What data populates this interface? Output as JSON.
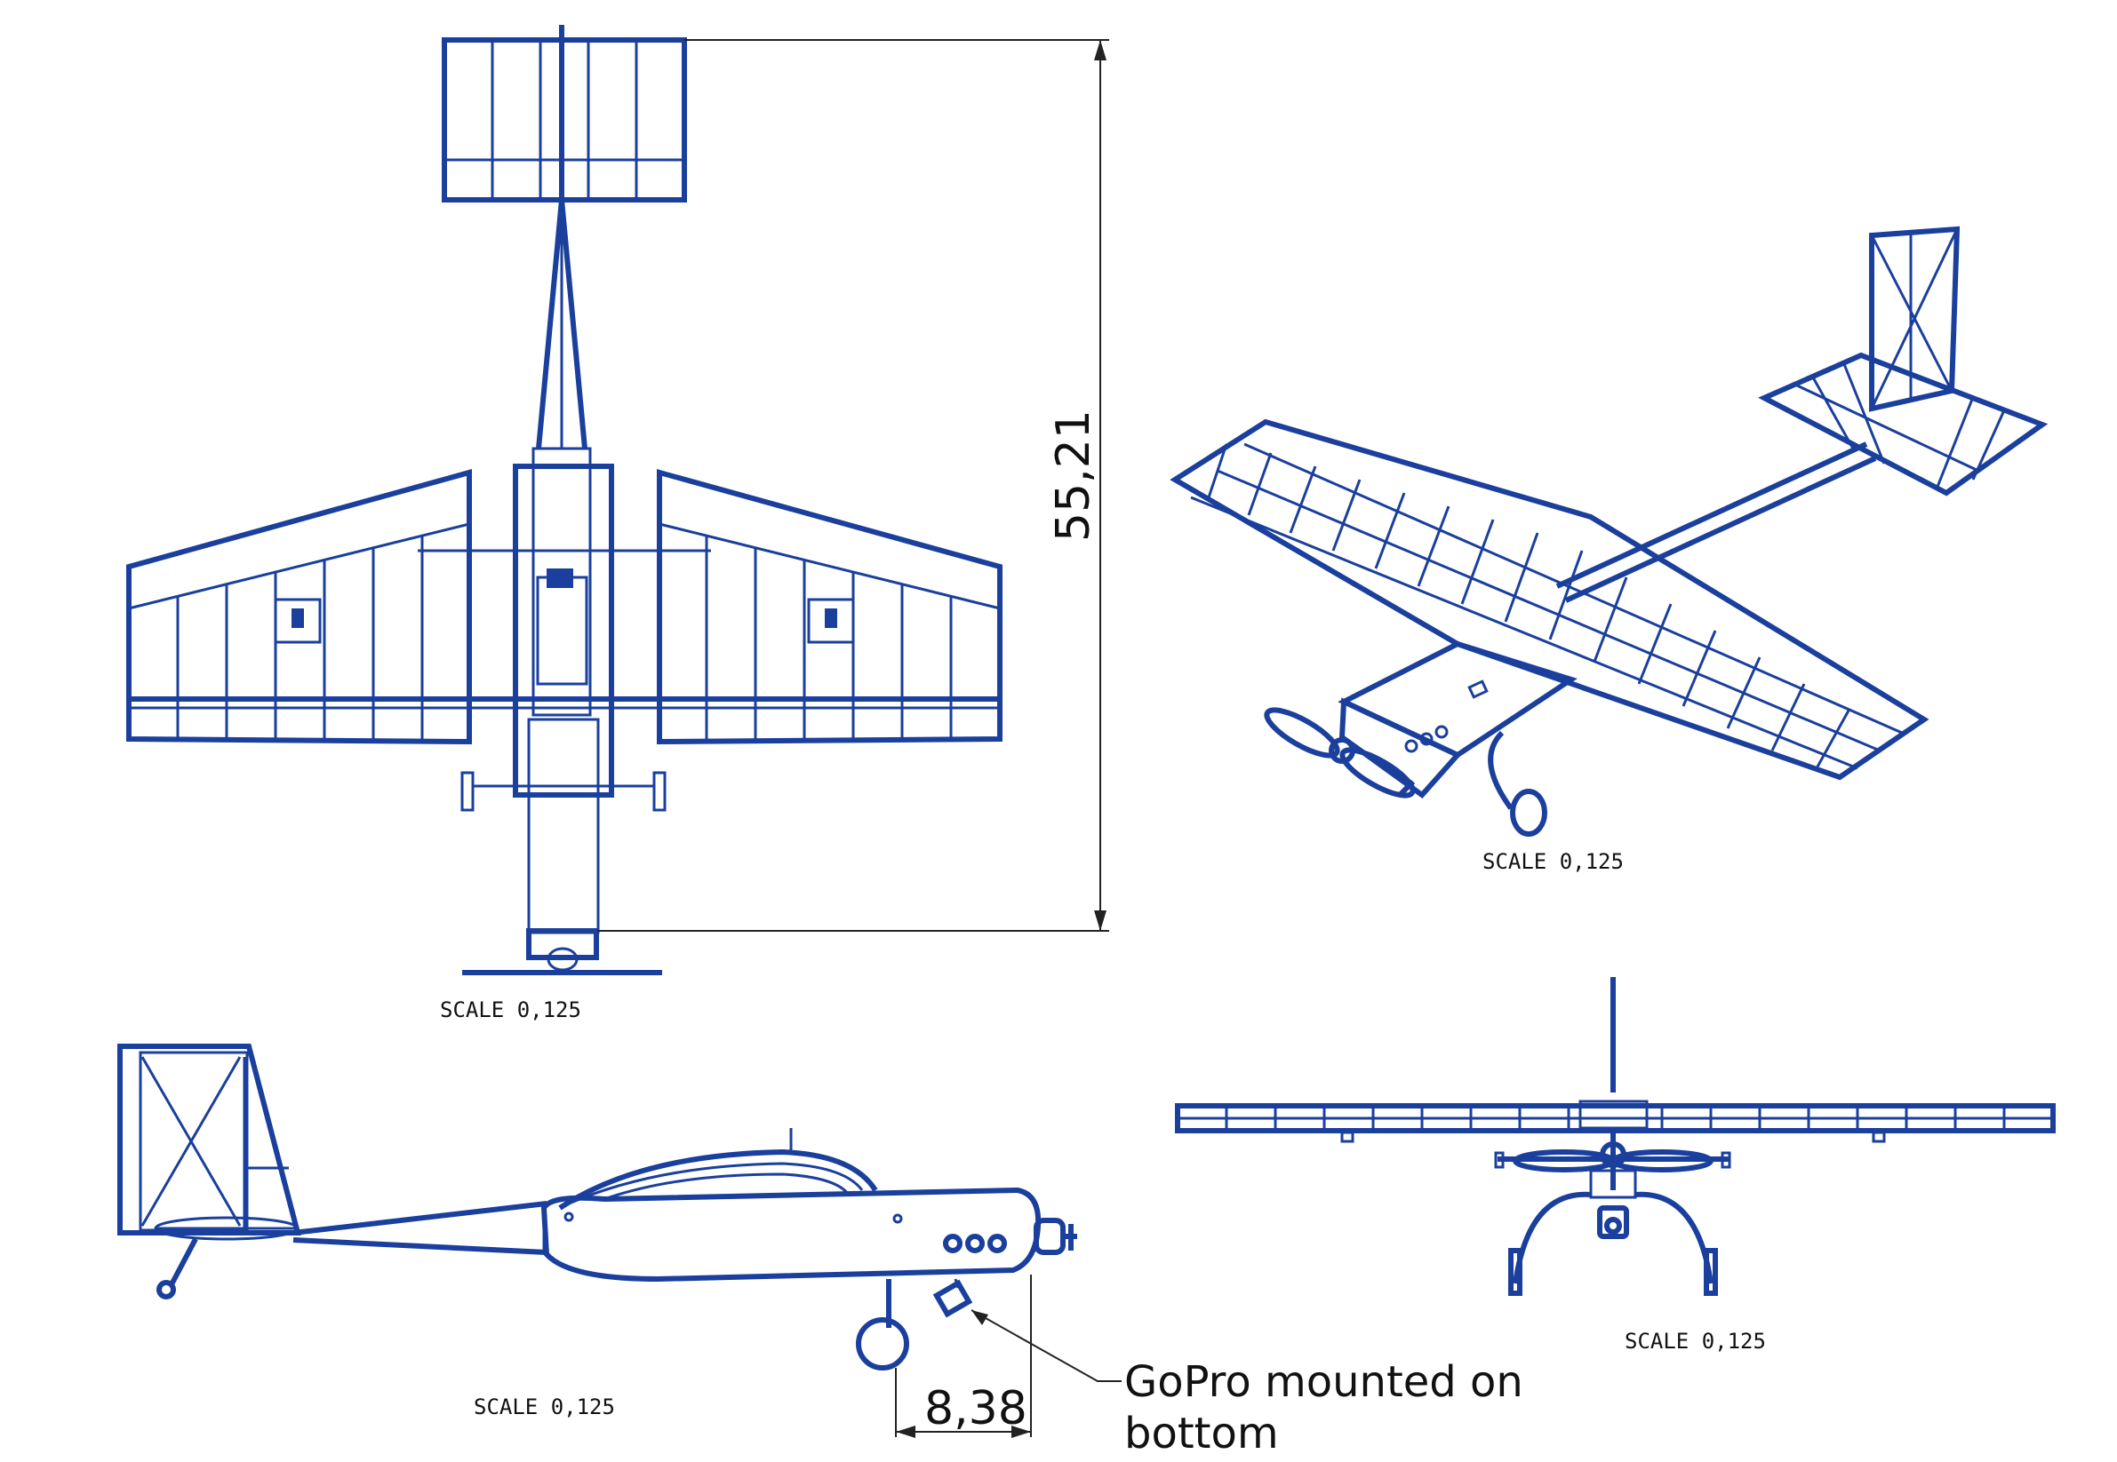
{
  "colors": {
    "line": "#1a3f9c",
    "dimension": "#222222",
    "background": "#ffffff"
  },
  "views": {
    "top": {
      "scale_label": "SCALE 0,125",
      "dimension": "55,21"
    },
    "iso": {
      "scale_label": "SCALE 0,125"
    },
    "side": {
      "scale_label": "SCALE 0,125",
      "dimension": "8,38"
    },
    "front": {
      "scale_label": "SCALE 0,125"
    }
  },
  "notes": {
    "gopro_line1": "GoPro mounted on",
    "gopro_line2": "bottom"
  }
}
